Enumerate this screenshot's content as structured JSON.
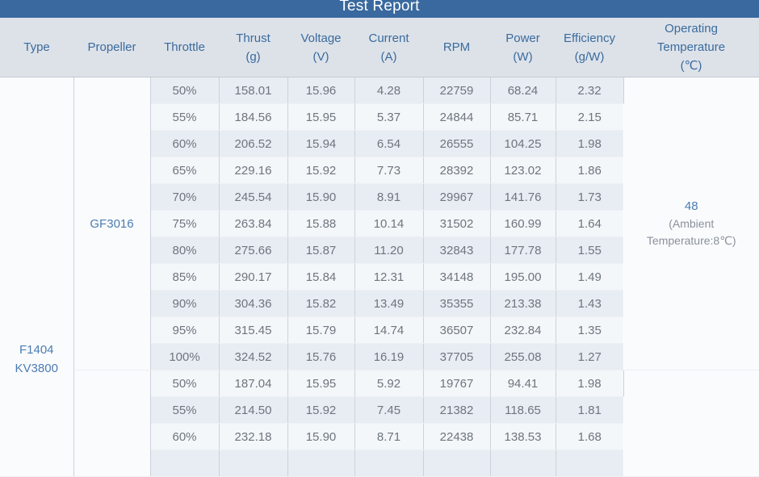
{
  "title": "Test Report",
  "colors": {
    "titlebar_bg": "#39699e",
    "title_text": "#ffffff",
    "header_bg": "#dde2e9",
    "header_text": "#3a6b9d",
    "header_border": "#c5cbd3",
    "row_dark": "#e8edf3",
    "row_light": "#f3f7fa",
    "merged_bg": "#fafbfd",
    "col_border": "#ccd2d9",
    "row_border": "#edf0f4",
    "group_border": "#b4bbc4",
    "data_text": "#6f757e",
    "accent": "#4b7db1",
    "note_text": "#8a919b"
  },
  "table": {
    "columns": [
      {
        "key": "type",
        "lines": [
          "Type"
        ]
      },
      {
        "key": "propeller",
        "lines": [
          "Propeller"
        ]
      },
      {
        "key": "throttle",
        "lines": [
          "Throttle"
        ]
      },
      {
        "key": "thrust",
        "lines": [
          "Thrust",
          "(g)"
        ]
      },
      {
        "key": "voltage",
        "lines": [
          "Voltage",
          "(V)"
        ]
      },
      {
        "key": "current",
        "lines": [
          "Current",
          "(A)"
        ]
      },
      {
        "key": "rpm",
        "lines": [
          "RPM"
        ]
      },
      {
        "key": "power",
        "lines": [
          "Power",
          "(W)"
        ]
      },
      {
        "key": "efficiency",
        "lines": [
          "Efficiency",
          "(g/W)"
        ]
      },
      {
        "key": "operating_temperature",
        "lines": [
          "Operating",
          "Temperature",
          "(℃)"
        ]
      }
    ],
    "type_lines": [
      "F1404",
      "KV3800"
    ],
    "groups": [
      {
        "propeller": "GF3016",
        "temp_value": "48",
        "temp_note": "(Ambient Temperature:8℃)",
        "has_partial_row": false,
        "rows": [
          {
            "throttle": "50%",
            "thrust": "158.01",
            "voltage": "15.96",
            "current": "4.28",
            "rpm": "22759",
            "power": "68.24",
            "efficiency": "2.32"
          },
          {
            "throttle": "55%",
            "thrust": "184.56",
            "voltage": "15.95",
            "current": "5.37",
            "rpm": "24844",
            "power": "85.71",
            "efficiency": "2.15"
          },
          {
            "throttle": "60%",
            "thrust": "206.52",
            "voltage": "15.94",
            "current": "6.54",
            "rpm": "26555",
            "power": "104.25",
            "efficiency": "1.98"
          },
          {
            "throttle": "65%",
            "thrust": "229.16",
            "voltage": "15.92",
            "current": "7.73",
            "rpm": "28392",
            "power": "123.02",
            "efficiency": "1.86"
          },
          {
            "throttle": "70%",
            "thrust": "245.54",
            "voltage": "15.90",
            "current": "8.91",
            "rpm": "29967",
            "power": "141.76",
            "efficiency": "1.73"
          },
          {
            "throttle": "75%",
            "thrust": "263.84",
            "voltage": "15.88",
            "current": "10.14",
            "rpm": "31502",
            "power": "160.99",
            "efficiency": "1.64"
          },
          {
            "throttle": "80%",
            "thrust": "275.66",
            "voltage": "15.87",
            "current": "11.20",
            "rpm": "32843",
            "power": "177.78",
            "efficiency": "1.55"
          },
          {
            "throttle": "85%",
            "thrust": "290.17",
            "voltage": "15.84",
            "current": "12.31",
            "rpm": "34148",
            "power": "195.00",
            "efficiency": "1.49"
          },
          {
            "throttle": "90%",
            "thrust": "304.36",
            "voltage": "15.82",
            "current": "13.49",
            "rpm": "35355",
            "power": "213.38",
            "efficiency": "1.43"
          },
          {
            "throttle": "95%",
            "thrust": "315.45",
            "voltage": "15.79",
            "current": "14.74",
            "rpm": "36507",
            "power": "232.84",
            "efficiency": "1.35"
          },
          {
            "throttle": "100%",
            "thrust": "324.52",
            "voltage": "15.76",
            "current": "16.19",
            "rpm": "37705",
            "power": "255.08",
            "efficiency": "1.27"
          }
        ]
      },
      {
        "propeller": "",
        "temp_value": "",
        "temp_note": "",
        "has_partial_row": true,
        "rows": [
          {
            "throttle": "50%",
            "thrust": "187.04",
            "voltage": "15.95",
            "current": "5.92",
            "rpm": "19767",
            "power": "94.41",
            "efficiency": "1.98"
          },
          {
            "throttle": "55%",
            "thrust": "214.50",
            "voltage": "15.92",
            "current": "7.45",
            "rpm": "21382",
            "power": "118.65",
            "efficiency": "1.81"
          },
          {
            "throttle": "60%",
            "thrust": "232.18",
            "voltage": "15.90",
            "current": "8.71",
            "rpm": "22438",
            "power": "138.53",
            "efficiency": "1.68"
          }
        ]
      }
    ]
  }
}
